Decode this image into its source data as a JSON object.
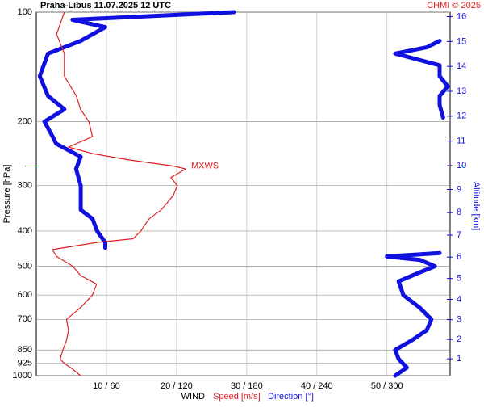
{
  "chart_data": {
    "type": "line",
    "title": "Praha-Libus   11.07.2025 12 UTC",
    "credit": "CHMI © 2025",
    "ylabel": "Pressure [hPa]",
    "y2label": "Altitude [km]",
    "xlabel": "WIND",
    "ylim": [
      1000,
      100
    ],
    "ylog": true,
    "yticks": [
      100,
      200,
      300,
      400,
      500,
      600,
      700,
      850,
      925,
      1000
    ],
    "xlim": [
      0,
      59
    ],
    "xticks": [
      {
        "value": 10,
        "label": "10 / 60"
      },
      {
        "value": 20,
        "label": "20 / 120"
      },
      {
        "value": 30,
        "label": "30 / 180"
      },
      {
        "value": 40,
        "label": "40 / 240"
      },
      {
        "value": 50,
        "label": "50 / 300"
      }
    ],
    "x2lim": [
      0,
      354
    ],
    "y2ticks": [
      1,
      2,
      3,
      4,
      5,
      6,
      7,
      8,
      9,
      10,
      11,
      12,
      13,
      14,
      15,
      16
    ],
    "grid": true,
    "annotation": {
      "text": "MXWS",
      "pressure": 265,
      "color": "#e02020"
    },
    "series": [
      {
        "name": "Speed [m/s]",
        "color": "#e02020",
        "width": 1.2,
        "pressure": [
          1000,
          960,
          925,
          900,
          850,
          800,
          750,
          700,
          650,
          600,
          560,
          530,
          500,
          470,
          450,
          430,
          420,
          400,
          370,
          350,
          320,
          300,
          285,
          270,
          265,
          255,
          245,
          235,
          220,
          200,
          185,
          170,
          150,
          130,
          115,
          100
        ],
        "values": [
          6.3,
          5.2,
          4.0,
          3.4,
          3.8,
          4.3,
          4.6,
          4.3,
          6.3,
          8.0,
          8.6,
          6.3,
          5.2,
          2.9,
          2.3,
          8.6,
          13.8,
          14.9,
          16.1,
          17.8,
          19.5,
          20.1,
          19.2,
          21.3,
          19.5,
          13.2,
          8.0,
          4.6,
          8.0,
          7.5,
          6.3,
          5.7,
          4.0,
          4.0,
          2.9,
          4.0
        ]
      },
      {
        "name": "Direction [°]",
        "color": "#1010e0",
        "width": 5,
        "axis": "x2",
        "pressure": [
          1000,
          950,
          900,
          850,
          800,
          750,
          700,
          650,
          600,
          550,
          520,
          500,
          480,
          470,
          460,
          null,
          445,
          430,
          400,
          370,
          350,
          300,
          270,
          250,
          230,
          220,
          200,
          185,
          170,
          150,
          130,
          120,
          110,
          105,
          100,
          null,
          195,
          180,
          170,
          160,
          150,
          140,
          130,
          125,
          120
        ],
        "values": [
          307,
          317,
          310,
          307,
          321,
          334,
          338,
          328,
          314,
          310,
          328,
          341,
          328,
          300,
          345,
          null,
          59,
          59,
          52,
          48,
          38,
          38,
          34,
          38,
          17,
          14,
          7,
          24,
          10,
          3,
          10,
          38,
          59,
          31,
          169,
          null,
          348,
          345,
          345,
          352,
          345,
          345,
          307,
          334,
          345
        ]
      }
    ]
  }
}
